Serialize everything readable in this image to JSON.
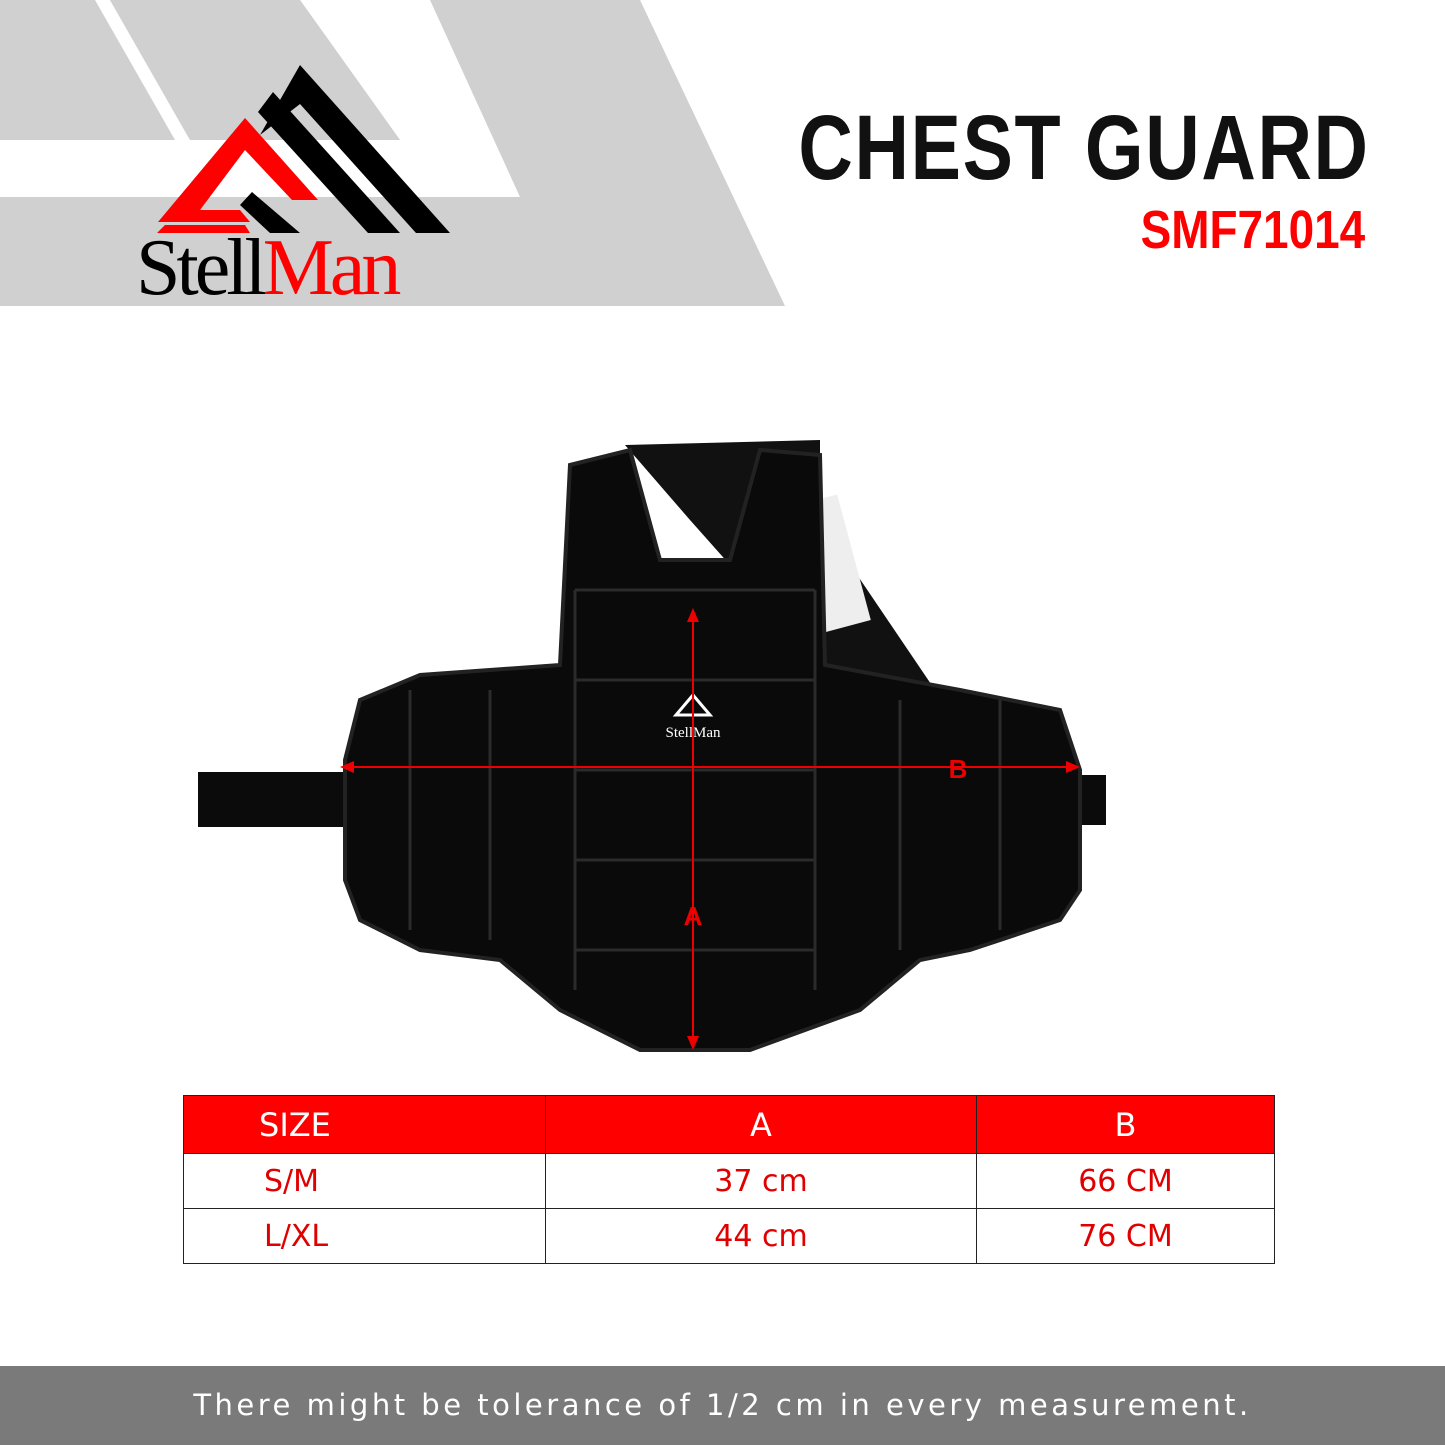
{
  "brand": {
    "part1": "Stell",
    "part2": "Man",
    "primary_color": "#ff0000",
    "secondary_color": "#000000"
  },
  "product": {
    "title": "CHEST GUARD",
    "code": "SMF71014"
  },
  "image": {
    "dimension_labels": {
      "a": "A",
      "b": "B"
    },
    "vest_logo_text": "StellMan"
  },
  "size_table": {
    "headers": [
      "SIZE",
      "A",
      "B"
    ],
    "rows": [
      [
        "S/M",
        "37 cm",
        "66 CM"
      ],
      [
        "L/XL",
        "44 cm",
        "76 CM"
      ]
    ]
  },
  "footer": {
    "note": "There might be tolerance of 1/2 cm in every measurement."
  }
}
